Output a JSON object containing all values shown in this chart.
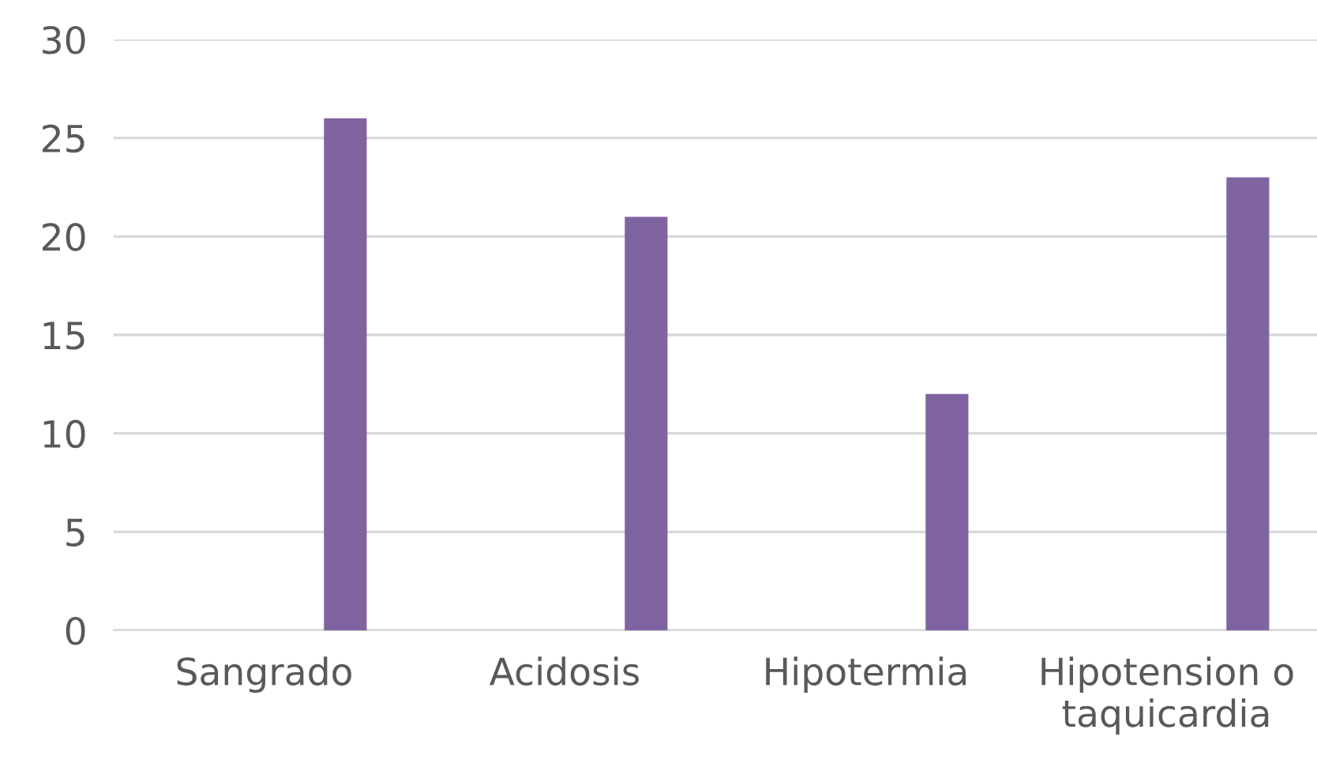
{
  "chart_data": {
    "type": "bar",
    "categories": [
      "Sangrado",
      "Acidosis",
      "Hipotermia",
      "Hipotension o\ntaquicardia"
    ],
    "series": [
      {
        "values": [
          null,
          null,
          null,
          null
        ]
      },
      {
        "values": [
          null,
          null,
          null,
          null
        ]
      },
      {
        "values": [
          null,
          null,
          null,
          null
        ]
      },
      {
        "color": "#8064a2",
        "values": [
          26,
          21,
          12,
          23
        ]
      }
    ],
    "ylim": [
      0,
      30
    ],
    "yticks": [
      0,
      5,
      10,
      15,
      20,
      25,
      30
    ],
    "grid": "y"
  }
}
